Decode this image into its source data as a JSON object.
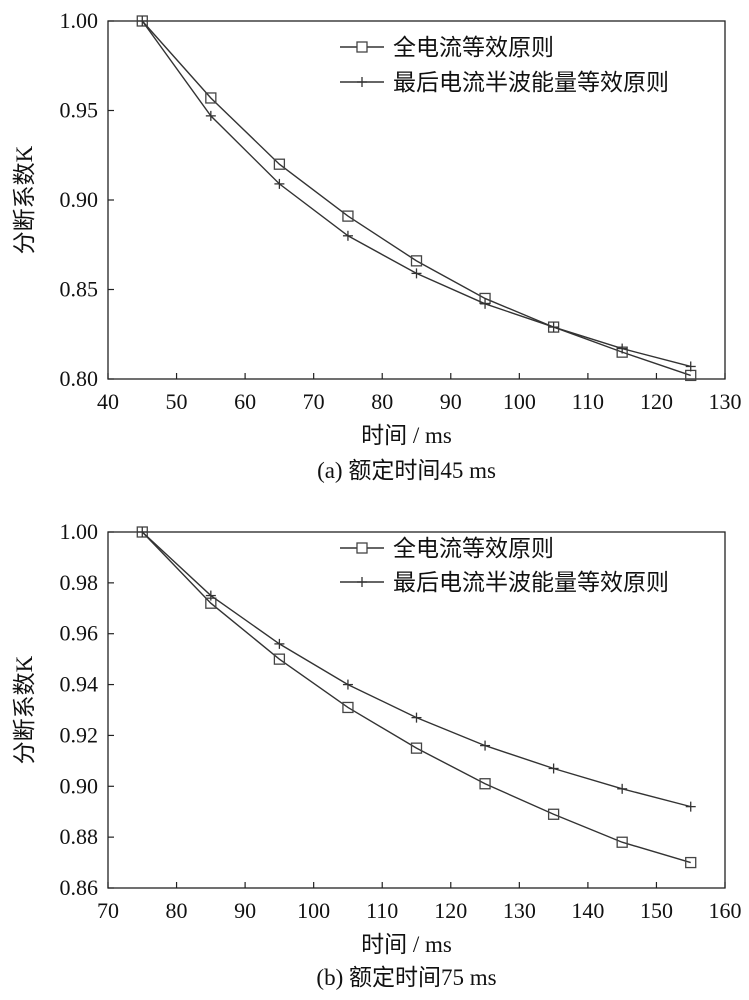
{
  "chart_data": [
    {
      "type": "line",
      "caption": "(a)  额定时间45 ms",
      "xlabel": "时间 / ms",
      "ylabel": "分断系数K",
      "xlim": [
        40,
        130
      ],
      "ylim": [
        0.8,
        1.0
      ],
      "xticks": [
        "40",
        "50",
        "60",
        "70",
        "80",
        "90",
        "100",
        "110",
        "120",
        "130"
      ],
      "yticks": [
        "0.80",
        "0.85",
        "0.90",
        "0.95",
        "1.00"
      ],
      "grid": false,
      "legend_position": "top-right",
      "series": [
        {
          "name": "全电流等效原则",
          "marker": "square",
          "x": [
            45,
            55,
            65,
            75,
            85,
            95,
            105,
            115,
            125
          ],
          "y": [
            1.0,
            0.957,
            0.92,
            0.891,
            0.866,
            0.845,
            0.829,
            0.815,
            0.802
          ]
        },
        {
          "name": "最后电流半波能量等效原则",
          "marker": "plus",
          "x": [
            45,
            55,
            65,
            75,
            85,
            95,
            105,
            115,
            125
          ],
          "y": [
            1.0,
            0.947,
            0.909,
            0.88,
            0.859,
            0.842,
            0.829,
            0.817,
            0.807
          ]
        }
      ]
    },
    {
      "type": "line",
      "caption": "(b)  额定时间75 ms",
      "xlabel": "时间 / ms",
      "ylabel": "分断系数K",
      "xlim": [
        70,
        160
      ],
      "ylim": [
        0.86,
        1.0
      ],
      "xticks": [
        "70",
        "80",
        "90",
        "100",
        "110",
        "120",
        "130",
        "140",
        "150",
        "160"
      ],
      "yticks": [
        "0.86",
        "0.88",
        "0.90",
        "0.92",
        "0.94",
        "0.96",
        "0.98",
        "1.00"
      ],
      "grid": false,
      "legend_position": "top-right",
      "series": [
        {
          "name": "全电流等效原则",
          "marker": "square",
          "x": [
            75,
            85,
            95,
            105,
            115,
            125,
            135,
            145,
            155
          ],
          "y": [
            1.0,
            0.972,
            0.95,
            0.931,
            0.915,
            0.901,
            0.889,
            0.878,
            0.87
          ]
        },
        {
          "name": "最后电流半波能量等效原则",
          "marker": "plus",
          "x": [
            75,
            85,
            95,
            105,
            115,
            125,
            135,
            145,
            155
          ],
          "y": [
            1.0,
            0.975,
            0.956,
            0.94,
            0.927,
            0.916,
            0.907,
            0.899,
            0.892
          ]
        }
      ]
    }
  ]
}
